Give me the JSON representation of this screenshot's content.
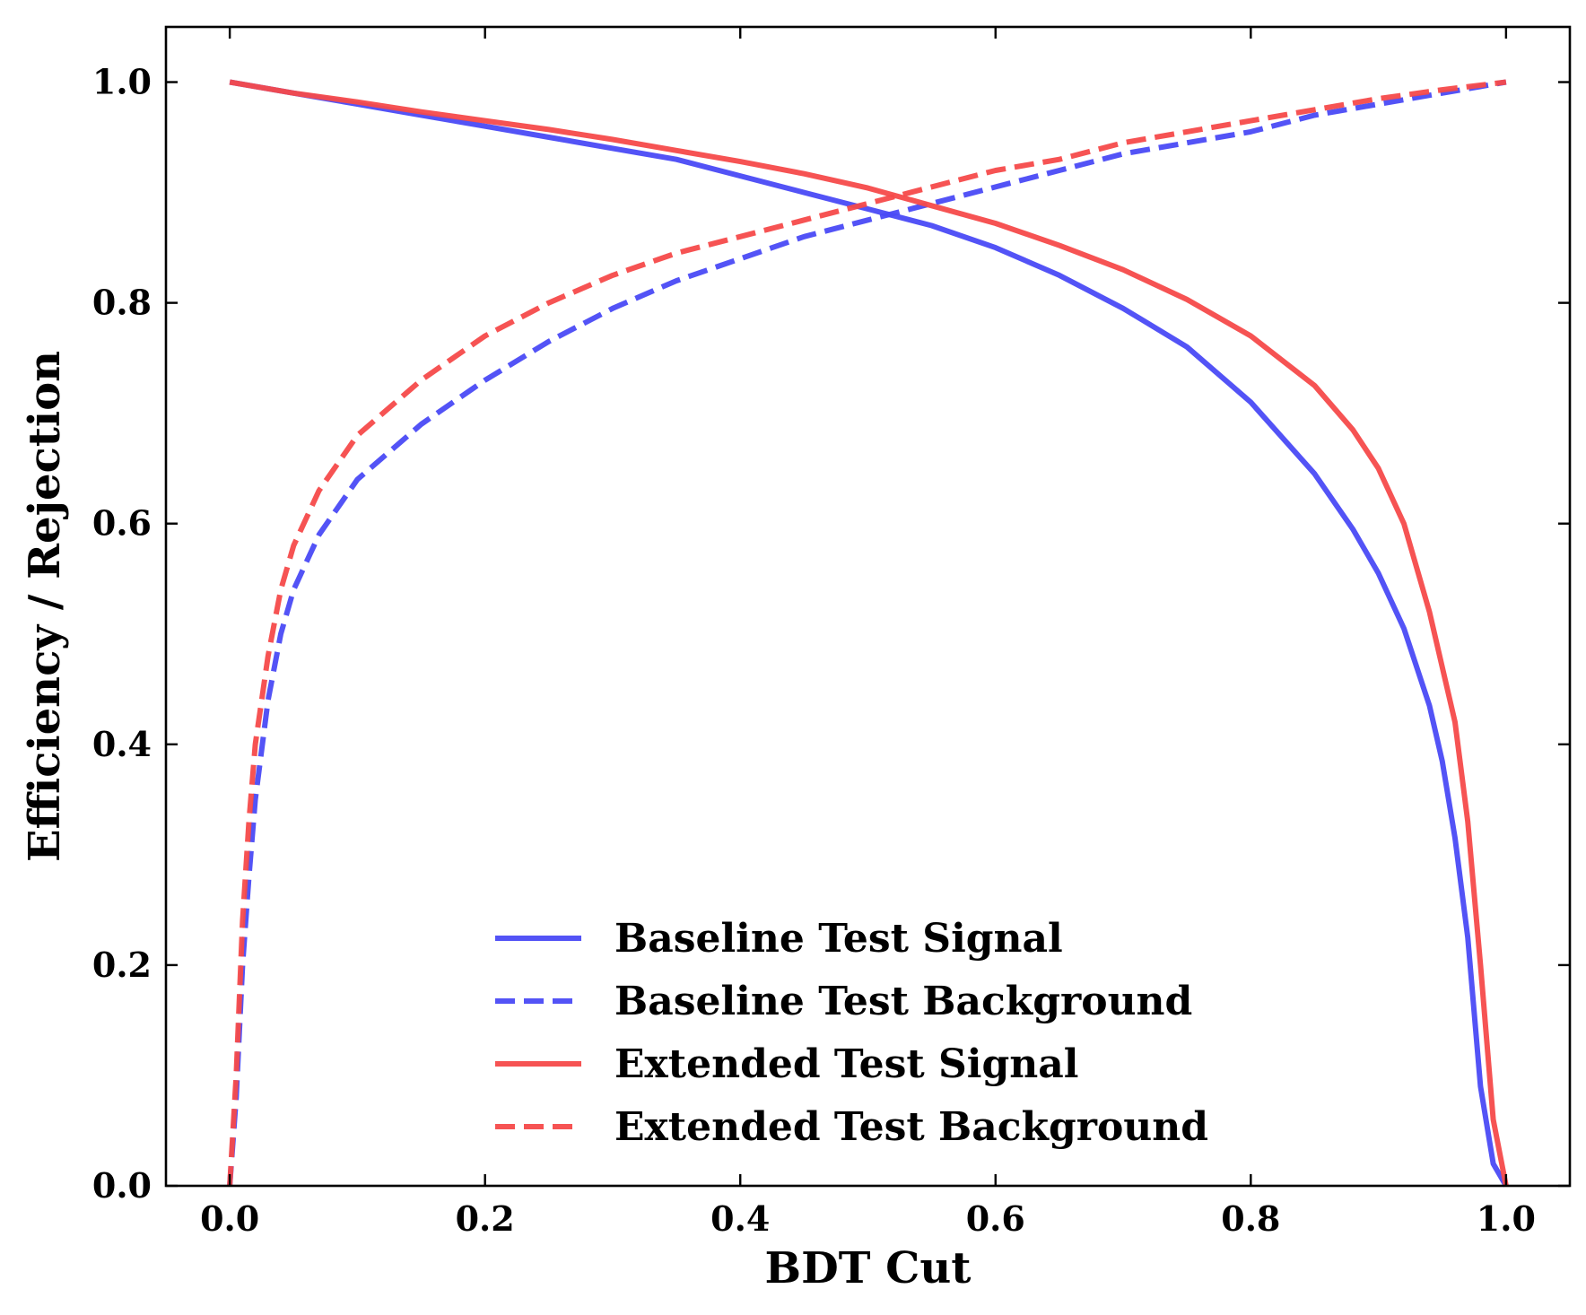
{
  "chart_data": {
    "type": "line",
    "title": "",
    "xlabel": "BDT Cut",
    "ylabel": "Efficiency / Rejection",
    "xlim": [
      -0.05,
      1.05
    ],
    "ylim": [
      0.0,
      1.05
    ],
    "xticks": [
      0.0,
      0.2,
      0.4,
      0.6,
      0.8,
      1.0
    ],
    "yticks": [
      0.0,
      0.2,
      0.4,
      0.6,
      0.8,
      1.0
    ],
    "xtick_labels": [
      "0.0",
      "0.2",
      "0.4",
      "0.6",
      "0.8",
      "1.0"
    ],
    "ytick_labels": [
      "0.0",
      "0.2",
      "0.4",
      "0.6",
      "0.8",
      "1.0"
    ],
    "grid": false,
    "legend_position": "lower-center",
    "series": [
      {
        "name": "Baseline Test Signal",
        "color": "#4a4af5",
        "dash": "solid",
        "x": [
          0.0,
          0.05,
          0.1,
          0.15,
          0.2,
          0.25,
          0.3,
          0.35,
          0.4,
          0.45,
          0.5,
          0.55,
          0.6,
          0.65,
          0.7,
          0.75,
          0.8,
          0.85,
          0.88,
          0.9,
          0.92,
          0.94,
          0.95,
          0.96,
          0.97,
          0.98,
          0.99,
          1.0
        ],
        "y": [
          1.0,
          0.99,
          0.98,
          0.97,
          0.96,
          0.95,
          0.94,
          0.93,
          0.915,
          0.9,
          0.885,
          0.87,
          0.85,
          0.825,
          0.795,
          0.76,
          0.71,
          0.645,
          0.595,
          0.555,
          0.505,
          0.435,
          0.385,
          0.315,
          0.225,
          0.09,
          0.02,
          0.0
        ]
      },
      {
        "name": "Baseline Test Background",
        "color": "#4a4af5",
        "dash": "dashed",
        "x": [
          0.0,
          0.005,
          0.01,
          0.015,
          0.02,
          0.03,
          0.04,
          0.05,
          0.07,
          0.1,
          0.15,
          0.2,
          0.25,
          0.3,
          0.35,
          0.4,
          0.45,
          0.5,
          0.55,
          0.6,
          0.65,
          0.7,
          0.75,
          0.8,
          0.85,
          0.9,
          0.95,
          1.0
        ],
        "y": [
          0.0,
          0.08,
          0.2,
          0.28,
          0.35,
          0.44,
          0.5,
          0.54,
          0.59,
          0.64,
          0.69,
          0.73,
          0.765,
          0.795,
          0.82,
          0.84,
          0.86,
          0.875,
          0.89,
          0.905,
          0.92,
          0.935,
          0.945,
          0.955,
          0.97,
          0.98,
          0.99,
          1.0
        ]
      },
      {
        "name": "Extended Test Signal",
        "color": "#f54a4a",
        "dash": "solid",
        "x": [
          0.0,
          0.05,
          0.1,
          0.15,
          0.2,
          0.25,
          0.3,
          0.35,
          0.4,
          0.45,
          0.5,
          0.55,
          0.6,
          0.65,
          0.7,
          0.75,
          0.8,
          0.85,
          0.88,
          0.9,
          0.92,
          0.94,
          0.96,
          0.97,
          0.98,
          0.99,
          1.0
        ],
        "y": [
          1.0,
          0.99,
          0.982,
          0.973,
          0.965,
          0.957,
          0.948,
          0.938,
          0.928,
          0.917,
          0.904,
          0.888,
          0.872,
          0.852,
          0.83,
          0.803,
          0.77,
          0.725,
          0.685,
          0.65,
          0.6,
          0.52,
          0.42,
          0.33,
          0.2,
          0.06,
          0.0
        ]
      },
      {
        "name": "Extended Test Background",
        "color": "#f54a4a",
        "dash": "dashed",
        "x": [
          0.0,
          0.005,
          0.01,
          0.015,
          0.02,
          0.03,
          0.04,
          0.05,
          0.07,
          0.1,
          0.15,
          0.2,
          0.25,
          0.3,
          0.35,
          0.4,
          0.45,
          0.5,
          0.55,
          0.6,
          0.65,
          0.7,
          0.75,
          0.8,
          0.85,
          0.9,
          0.95,
          1.0
        ],
        "y": [
          0.0,
          0.1,
          0.24,
          0.33,
          0.4,
          0.48,
          0.54,
          0.58,
          0.63,
          0.68,
          0.73,
          0.77,
          0.8,
          0.825,
          0.845,
          0.86,
          0.875,
          0.89,
          0.905,
          0.92,
          0.93,
          0.945,
          0.955,
          0.965,
          0.975,
          0.985,
          0.993,
          1.0
        ]
      }
    ]
  }
}
